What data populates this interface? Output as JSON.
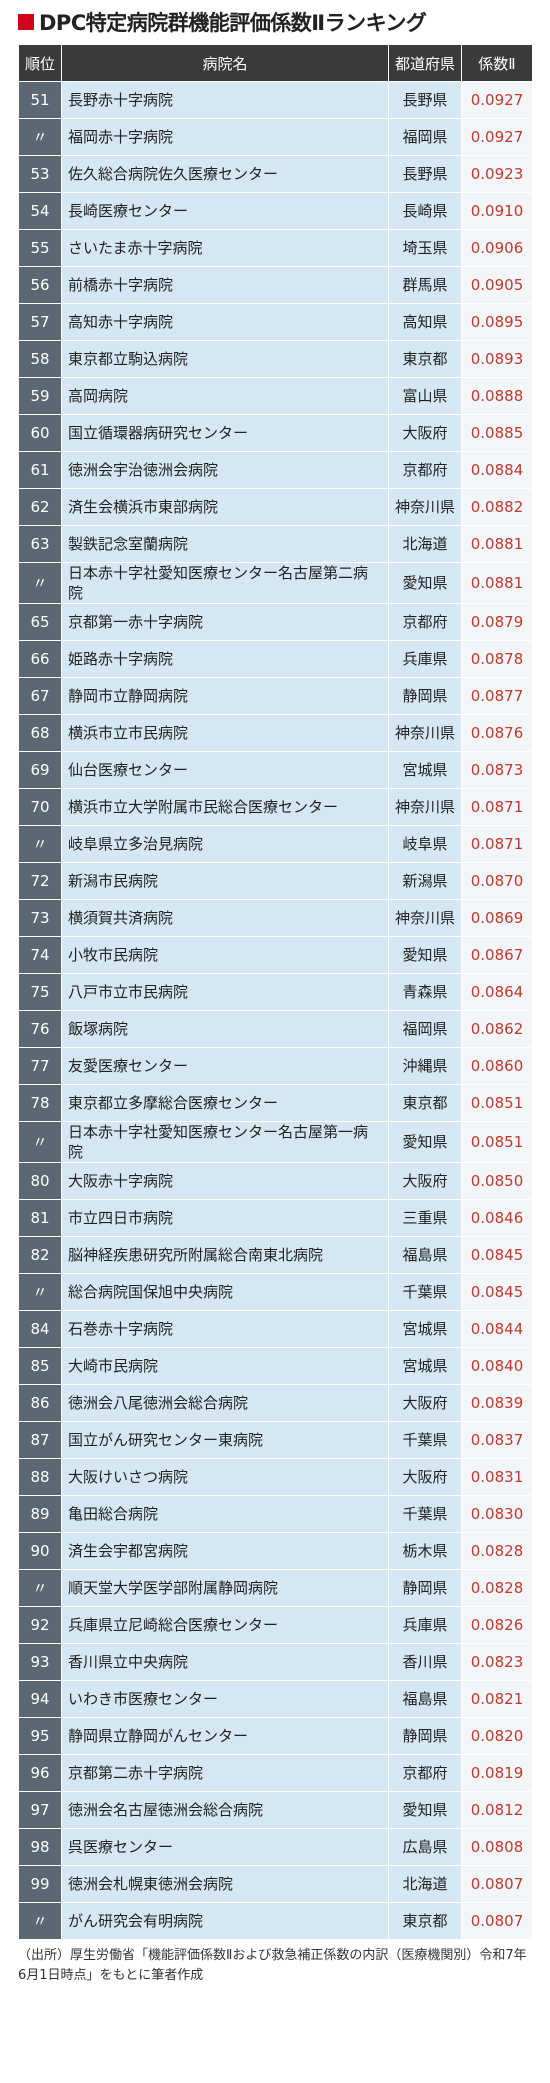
{
  "header": {
    "title": "DPC特定病院群機能評価係数Ⅱランキング"
  },
  "table": {
    "columns": [
      "順位",
      "病院名",
      "都道府県",
      "係数Ⅱ"
    ],
    "rows": [
      [
        "51",
        "長野赤十字病院",
        "長野県",
        "0.0927"
      ],
      [
        "〃",
        "福岡赤十字病院",
        "福岡県",
        "0.0927"
      ],
      [
        "53",
        "佐久総合病院佐久医療センター",
        "長野県",
        "0.0923"
      ],
      [
        "54",
        "長崎医療センター",
        "長崎県",
        "0.0910"
      ],
      [
        "55",
        "さいたま赤十字病院",
        "埼玉県",
        "0.0906"
      ],
      [
        "56",
        "前橋赤十字病院",
        "群馬県",
        "0.0905"
      ],
      [
        "57",
        "高知赤十字病院",
        "高知県",
        "0.0895"
      ],
      [
        "58",
        "東京都立駒込病院",
        "東京都",
        "0.0893"
      ],
      [
        "59",
        "高岡病院",
        "富山県",
        "0.0888"
      ],
      [
        "60",
        "国立循環器病研究センター",
        "大阪府",
        "0.0885"
      ],
      [
        "61",
        "徳洲会宇治徳洲会病院",
        "京都府",
        "0.0884"
      ],
      [
        "62",
        "済生会横浜市東部病院",
        "神奈川県",
        "0.0882"
      ],
      [
        "63",
        "製鉄記念室蘭病院",
        "北海道",
        "0.0881"
      ],
      [
        "〃",
        "日本赤十字社愛知医療センター名古屋第二病院",
        "愛知県",
        "0.0881"
      ],
      [
        "65",
        "京都第一赤十字病院",
        "京都府",
        "0.0879"
      ],
      [
        "66",
        "姫路赤十字病院",
        "兵庫県",
        "0.0878"
      ],
      [
        "67",
        "静岡市立静岡病院",
        "静岡県",
        "0.0877"
      ],
      [
        "68",
        "横浜市立市民病院",
        "神奈川県",
        "0.0876"
      ],
      [
        "69",
        "仙台医療センター",
        "宮城県",
        "0.0873"
      ],
      [
        "70",
        "横浜市立大学附属市民総合医療センター",
        "神奈川県",
        "0.0871"
      ],
      [
        "〃",
        "岐阜県立多治見病院",
        "岐阜県",
        "0.0871"
      ],
      [
        "72",
        "新潟市民病院",
        "新潟県",
        "0.0870"
      ],
      [
        "73",
        "横須賀共済病院",
        "神奈川県",
        "0.0869"
      ],
      [
        "74",
        "小牧市民病院",
        "愛知県",
        "0.0867"
      ],
      [
        "75",
        "八戸市立市民病院",
        "青森県",
        "0.0864"
      ],
      [
        "76",
        "飯塚病院",
        "福岡県",
        "0.0862"
      ],
      [
        "77",
        "友愛医療センター",
        "沖縄県",
        "0.0860"
      ],
      [
        "78",
        "東京都立多摩総合医療センター",
        "東京都",
        "0.0851"
      ],
      [
        "〃",
        "日本赤十字社愛知医療センター名古屋第一病院",
        "愛知県",
        "0.0851"
      ],
      [
        "80",
        "大阪赤十字病院",
        "大阪府",
        "0.0850"
      ],
      [
        "81",
        "市立四日市病院",
        "三重県",
        "0.0846"
      ],
      [
        "82",
        "脳神経疾患研究所附属総合南東北病院",
        "福島県",
        "0.0845"
      ],
      [
        "〃",
        "総合病院国保旭中央病院",
        "千葉県",
        "0.0845"
      ],
      [
        "84",
        "石巻赤十字病院",
        "宮城県",
        "0.0844"
      ],
      [
        "85",
        "大崎市民病院",
        "宮城県",
        "0.0840"
      ],
      [
        "86",
        "徳洲会八尾徳洲会総合病院",
        "大阪府",
        "0.0839"
      ],
      [
        "87",
        "国立がん研究センター東病院",
        "千葉県",
        "0.0837"
      ],
      [
        "88",
        "大阪けいさつ病院",
        "大阪府",
        "0.0831"
      ],
      [
        "89",
        "亀田総合病院",
        "千葉県",
        "0.0830"
      ],
      [
        "90",
        "済生会宇都宮病院",
        "栃木県",
        "0.0828"
      ],
      [
        "〃",
        "順天堂大学医学部附属静岡病院",
        "静岡県",
        "0.0828"
      ],
      [
        "92",
        "兵庫県立尼崎総合医療センター",
        "兵庫県",
        "0.0826"
      ],
      [
        "93",
        "香川県立中央病院",
        "香川県",
        "0.0823"
      ],
      [
        "94",
        "いわき市医療センター",
        "福島県",
        "0.0821"
      ],
      [
        "95",
        "静岡県立静岡がんセンター",
        "静岡県",
        "0.0820"
      ],
      [
        "96",
        "京都第二赤十字病院",
        "京都府",
        "0.0819"
      ],
      [
        "97",
        "徳洲会名古屋徳洲会総合病院",
        "愛知県",
        "0.0812"
      ],
      [
        "98",
        "呉医療センター",
        "広島県",
        "0.0808"
      ],
      [
        "99",
        "徳洲会札幌東徳洲会病院",
        "北海道",
        "0.0807"
      ],
      [
        "〃",
        "がん研究会有明病院",
        "東京都",
        "0.0807"
      ]
    ]
  },
  "footer": {
    "note": "（出所）厚生労働省「機能評価係数Ⅱおよび救急補正係数の内訳（医療機関別）令和7年6月1日時点」をもとに筆者作成"
  }
}
